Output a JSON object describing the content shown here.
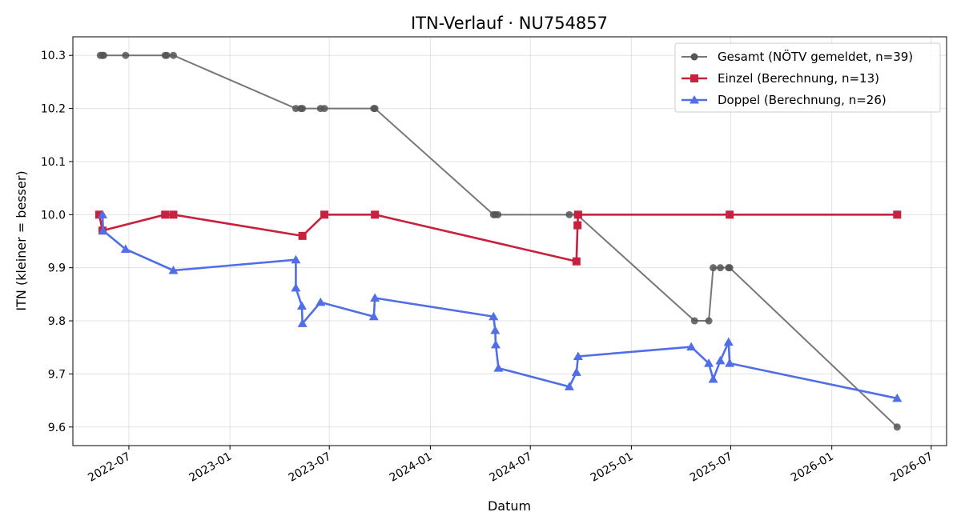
{
  "chart_data": {
    "type": "line",
    "title": "ITN-Verlauf · NU754857",
    "xlabel": "Datum",
    "ylabel": "ITN  (kleiner = besser)",
    "xlim": [
      "2022-03-21",
      "2026-07-29"
    ],
    "ylim": [
      9.565,
      10.335
    ],
    "x_ticks": [
      "2022-07-01",
      "2023-01-01",
      "2023-07-01",
      "2024-01-01",
      "2024-07-01",
      "2025-01-01",
      "2025-07-01",
      "2026-01-01",
      "2026-07-01"
    ],
    "x_tick_labels": [
      "2022-07",
      "2023-01",
      "2023-07",
      "2024-01",
      "2024-07",
      "2025-01",
      "2025-07",
      "2026-01",
      "2026-07"
    ],
    "y_ticks": [
      9.6,
      9.7,
      9.8,
      9.9,
      10.0,
      10.1,
      10.2,
      10.3
    ],
    "y_tick_labels": [
      "9.6",
      "9.7",
      "9.8",
      "9.9",
      "10.0",
      "10.1",
      "10.2",
      "10.3"
    ],
    "grid": true,
    "legend_position": "top-right",
    "series": [
      {
        "name": "Gesamt (NÖTV gemeldet, n=39)",
        "color": "#555555",
        "marker": "circle",
        "points": [
          {
            "x": "2022-05-10",
            "y": 10.3
          },
          {
            "x": "2022-05-14",
            "y": 10.3
          },
          {
            "x": "2022-05-16",
            "y": 10.3
          },
          {
            "x": "2022-06-25",
            "y": 10.3
          },
          {
            "x": "2022-09-05",
            "y": 10.3
          },
          {
            "x": "2022-09-08",
            "y": 10.3
          },
          {
            "x": "2022-09-20",
            "y": 10.3
          },
          {
            "x": "2023-05-01",
            "y": 10.2
          },
          {
            "x": "2023-05-10",
            "y": 10.2
          },
          {
            "x": "2023-05-13",
            "y": 10.2
          },
          {
            "x": "2023-06-15",
            "y": 10.2
          },
          {
            "x": "2023-06-22",
            "y": 10.2
          },
          {
            "x": "2023-09-20",
            "y": 10.2
          },
          {
            "x": "2023-09-22",
            "y": 10.2
          },
          {
            "x": "2024-04-25",
            "y": 10.0
          },
          {
            "x": "2024-04-28",
            "y": 10.0
          },
          {
            "x": "2024-05-03",
            "y": 10.0
          },
          {
            "x": "2024-09-10",
            "y": 10.0
          },
          {
            "x": "2024-09-24",
            "y": 10.0
          },
          {
            "x": "2025-04-26",
            "y": 9.8
          },
          {
            "x": "2025-05-22",
            "y": 9.8
          },
          {
            "x": "2025-05-30",
            "y": 9.9
          },
          {
            "x": "2025-06-12",
            "y": 9.9
          },
          {
            "x": "2025-06-27",
            "y": 9.9
          },
          {
            "x": "2025-06-29",
            "y": 9.9
          },
          {
            "x": "2026-04-30",
            "y": 9.6
          }
        ]
      },
      {
        "name": "Einzel (Berechnung, n=13)",
        "color": "#c8203d",
        "marker": "square",
        "points": [
          {
            "x": "2022-05-08",
            "y": 10.0
          },
          {
            "x": "2022-05-14",
            "y": 9.97
          },
          {
            "x": "2022-09-05",
            "y": 10.0
          },
          {
            "x": "2022-09-20",
            "y": 10.0
          },
          {
            "x": "2023-05-13",
            "y": 9.96
          },
          {
            "x": "2023-06-22",
            "y": 10.0
          },
          {
            "x": "2023-09-22",
            "y": 10.0
          },
          {
            "x": "2024-09-23",
            "y": 9.912
          },
          {
            "x": "2024-09-25",
            "y": 9.98
          },
          {
            "x": "2024-09-26",
            "y": 10.0
          },
          {
            "x": "2025-06-29",
            "y": 10.0
          },
          {
            "x": "2026-04-30",
            "y": 10.0
          }
        ]
      },
      {
        "name": "Doppel (Berechnung, n=26)",
        "color": "#4f6ee8",
        "marker": "triangle",
        "points": [
          {
            "x": "2022-05-14",
            "y": 10.0
          },
          {
            "x": "2022-05-15",
            "y": 9.97
          },
          {
            "x": "2022-06-25",
            "y": 9.935
          },
          {
            "x": "2022-09-20",
            "y": 9.895
          },
          {
            "x": "2023-05-01",
            "y": 9.915
          },
          {
            "x": "2023-05-01",
            "y": 9.862
          },
          {
            "x": "2023-05-12",
            "y": 9.828
          },
          {
            "x": "2023-05-13",
            "y": 9.795
          },
          {
            "x": "2023-06-15",
            "y": 9.835
          },
          {
            "x": "2023-09-20",
            "y": 9.808
          },
          {
            "x": "2023-09-22",
            "y": 9.843
          },
          {
            "x": "2024-04-25",
            "y": 9.808
          },
          {
            "x": "2024-04-28",
            "y": 9.782
          },
          {
            "x": "2024-04-29",
            "y": 9.755
          },
          {
            "x": "2024-05-04",
            "y": 9.711
          },
          {
            "x": "2024-09-10",
            "y": 9.676
          },
          {
            "x": "2024-09-23",
            "y": 9.703
          },
          {
            "x": "2024-09-26",
            "y": 9.733
          },
          {
            "x": "2025-04-20",
            "y": 9.751
          },
          {
            "x": "2025-05-22",
            "y": 9.72
          },
          {
            "x": "2025-05-30",
            "y": 9.69
          },
          {
            "x": "2025-06-12",
            "y": 9.725
          },
          {
            "x": "2025-06-27",
            "y": 9.76
          },
          {
            "x": "2025-06-29",
            "y": 9.72
          },
          {
            "x": "2026-04-30",
            "y": 9.654
          }
        ]
      }
    ]
  }
}
